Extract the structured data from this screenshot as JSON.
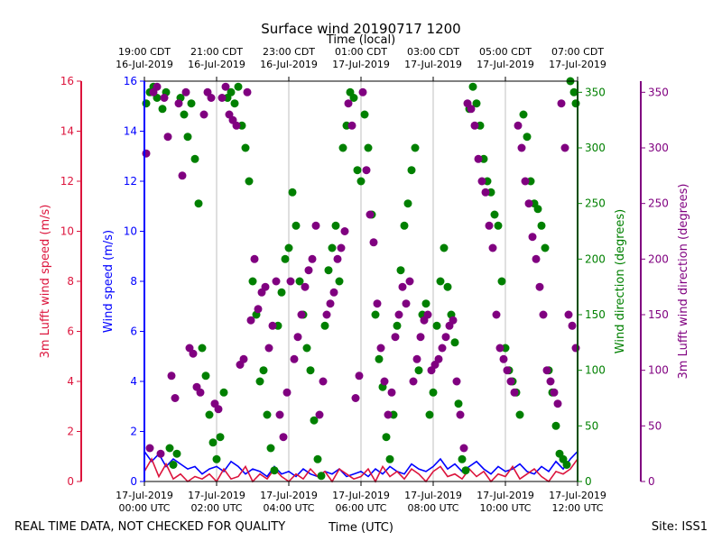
{
  "chart_data": {
    "type": "scatter",
    "title": "Surface wind 20190717 1200",
    "top_axis_label": "Time (local)",
    "top_ticks": [
      [
        "19:00 CDT",
        "16-Jul-2019"
      ],
      [
        "21:00 CDT",
        "16-Jul-2019"
      ],
      [
        "23:00 CDT",
        "16-Jul-2019"
      ],
      [
        "01:00 CDT",
        "17-Jul-2019"
      ],
      [
        "03:00 CDT",
        "17-Jul-2019"
      ],
      [
        "05:00 CDT",
        "17-Jul-2019"
      ],
      [
        "07:00 CDT",
        "17-Jul-2019"
      ]
    ],
    "bottom_ticks": [
      [
        "17-Jul-2019",
        "00:00 UTC"
      ],
      [
        "17-Jul-2019",
        "02:00 UTC"
      ],
      [
        "17-Jul-2019",
        "04:00 UTC"
      ],
      [
        "17-Jul-2019",
        "06:00 UTC"
      ],
      [
        "17-Jul-2019",
        "08:00 UTC"
      ],
      [
        "17-Jul-2019",
        "10:00 UTC"
      ],
      [
        "17-Jul-2019",
        "12:00 UTC"
      ]
    ],
    "xlabel": "Time (UTC)",
    "xlim_hours": [
      0,
      12
    ],
    "left_outer_axis": {
      "label": "3m Lufft wind speed (m/s)",
      "ticks": [
        0,
        2,
        4,
        6,
        8,
        10,
        12,
        14,
        16
      ],
      "ylim": [
        0,
        16
      ],
      "color": "#dc143c"
    },
    "left_inner_axis": {
      "label": "Wind speed (m/s)",
      "ticks": [
        0,
        2,
        4,
        6,
        8,
        10,
        12,
        14,
        16
      ],
      "ylim": [
        0,
        16
      ],
      "color": "#0000ff"
    },
    "right_inner_axis": {
      "label": "Wind direction (degrees)",
      "ticks": [
        0,
        50,
        100,
        150,
        200,
        250,
        300,
        350
      ],
      "ylim": [
        0,
        360
      ],
      "color": "#008000"
    },
    "right_outer_axis": {
      "label": "3m Lufft wind direction (degrees)",
      "ticks": [
        0,
        50,
        100,
        150,
        200,
        250,
        300,
        350
      ],
      "ylim": [
        0,
        360
      ],
      "color": "#800080"
    },
    "series": [
      {
        "name": "Wind speed",
        "kind": "line",
        "color": "#0000ff",
        "x": [
          0,
          0.2,
          0.4,
          0.6,
          0.8,
          1.0,
          1.2,
          1.4,
          1.6,
          1.8,
          2.0,
          2.2,
          2.4,
          2.6,
          2.8,
          3.0,
          3.2,
          3.4,
          3.6,
          3.8,
          4.0,
          4.2,
          4.4,
          4.6,
          4.8,
          5.0,
          5.2,
          5.4,
          5.6,
          5.8,
          6.0,
          6.2,
          6.4,
          6.6,
          6.8,
          7.0,
          7.2,
          7.4,
          7.6,
          7.8,
          8.0,
          8.2,
          8.4,
          8.6,
          8.8,
          9.0,
          9.2,
          9.4,
          9.6,
          9.8,
          10.0,
          10.2,
          10.4,
          10.6,
          10.8,
          11.0,
          11.2,
          11.4,
          11.6,
          11.8,
          12.0
        ],
        "values": [
          1.2,
          0.8,
          1.1,
          0.6,
          0.9,
          0.7,
          0.5,
          0.6,
          0.3,
          0.5,
          0.6,
          0.4,
          0.8,
          0.6,
          0.3,
          0.5,
          0.4,
          0.2,
          0.6,
          0.3,
          0.4,
          0.2,
          0.5,
          0.3,
          0.2,
          0.4,
          0.3,
          0.5,
          0.2,
          0.3,
          0.4,
          0.2,
          0.5,
          0.3,
          0.6,
          0.4,
          0.3,
          0.7,
          0.5,
          0.4,
          0.6,
          0.9,
          0.5,
          0.7,
          0.4,
          0.6,
          0.8,
          0.5,
          0.3,
          0.6,
          0.4,
          0.5,
          0.7,
          0.4,
          0.3,
          0.6,
          0.4,
          0.8,
          0.5,
          0.9,
          1.2
        ]
      },
      {
        "name": "3m Lufft wind speed",
        "kind": "line",
        "color": "#dc143c",
        "x": [
          0,
          0.2,
          0.4,
          0.6,
          0.8,
          1.0,
          1.2,
          1.4,
          1.6,
          1.8,
          2.0,
          2.2,
          2.4,
          2.6,
          2.8,
          3.0,
          3.2,
          3.4,
          3.6,
          3.8,
          4.0,
          4.2,
          4.4,
          4.6,
          4.8,
          5.0,
          5.2,
          5.4,
          5.6,
          5.8,
          6.0,
          6.2,
          6.4,
          6.6,
          6.8,
          7.0,
          7.2,
          7.4,
          7.6,
          7.8,
          8.0,
          8.2,
          8.4,
          8.6,
          8.8,
          9.0,
          9.2,
          9.4,
          9.6,
          9.8,
          10.0,
          10.2,
          10.4,
          10.6,
          10.8,
          11.0,
          11.2,
          11.4,
          11.6,
          11.8,
          12.0
        ],
        "values": [
          0.4,
          0.9,
          0.2,
          0.7,
          0.1,
          0.3,
          0.0,
          0.2,
          0.1,
          0.3,
          0.0,
          0.5,
          0.1,
          0.2,
          0.6,
          0.0,
          0.3,
          0.1,
          0.5,
          0.2,
          0.0,
          0.3,
          0.1,
          0.5,
          0.2,
          0.4,
          0.0,
          0.5,
          0.3,
          0.1,
          0.2,
          0.5,
          0.0,
          0.6,
          0.2,
          0.4,
          0.1,
          0.5,
          0.3,
          0.0,
          0.4,
          0.6,
          0.2,
          0.3,
          0.1,
          0.5,
          0.2,
          0.4,
          0.0,
          0.3,
          0.2,
          0.6,
          0.1,
          0.3,
          0.5,
          0.2,
          0.0,
          0.4,
          0.3,
          0.5,
          0.9
        ]
      },
      {
        "name": "Wind direction",
        "kind": "scatter",
        "color": "#008000",
        "x": [
          0.05,
          0.15,
          0.25,
          0.35,
          0.5,
          0.6,
          0.7,
          0.8,
          0.9,
          1.0,
          1.1,
          1.2,
          1.3,
          1.4,
          1.5,
          1.6,
          1.7,
          1.8,
          1.9,
          2.0,
          2.1,
          2.2,
          2.3,
          2.4,
          2.5,
          2.6,
          2.7,
          2.8,
          2.9,
          3.0,
          3.1,
          3.2,
          3.3,
          3.4,
          3.5,
          3.6,
          3.7,
          3.8,
          3.9,
          4.0,
          4.1,
          4.2,
          4.3,
          4.4,
          4.5,
          4.6,
          4.7,
          4.8,
          4.9,
          5.0,
          5.1,
          5.2,
          5.3,
          5.4,
          5.5,
          5.6,
          5.7,
          5.8,
          5.9,
          6.0,
          6.1,
          6.2,
          6.3,
          6.4,
          6.5,
          6.6,
          6.7,
          6.8,
          6.9,
          7.0,
          7.1,
          7.2,
          7.3,
          7.4,
          7.5,
          7.6,
          7.7,
          7.8,
          7.9,
          8.0,
          8.1,
          8.2,
          8.3,
          8.4,
          8.5,
          8.6,
          8.7,
          8.8,
          8.9,
          9.0,
          9.1,
          9.2,
          9.3,
          9.4,
          9.5,
          9.6,
          9.7,
          9.8,
          9.9,
          10.0,
          10.1,
          10.2,
          10.3,
          10.4,
          10.5,
          10.6,
          10.7,
          10.8,
          10.9,
          11.0,
          11.1,
          11.2,
          11.3,
          11.4,
          11.5,
          11.6,
          11.7,
          11.8,
          11.9,
          11.95
        ],
        "values": [
          340,
          350,
          355,
          345,
          335,
          350,
          30,
          15,
          25,
          345,
          330,
          310,
          340,
          290,
          250,
          120,
          95,
          60,
          35,
          20,
          40,
          80,
          345,
          350,
          340,
          355,
          320,
          300,
          270,
          180,
          150,
          90,
          100,
          60,
          30,
          10,
          140,
          170,
          200,
          210,
          260,
          230,
          180,
          150,
          120,
          100,
          55,
          20,
          5,
          140,
          190,
          210,
          230,
          180,
          300,
          320,
          350,
          345,
          280,
          270,
          330,
          300,
          240,
          150,
          110,
          85,
          40,
          20,
          60,
          140,
          190,
          230,
          250,
          280,
          300,
          100,
          150,
          160,
          60,
          80,
          140,
          180,
          210,
          175,
          150,
          125,
          70,
          20,
          10,
          335,
          355,
          340,
          320,
          290,
          270,
          260,
          240,
          230,
          180,
          120,
          100,
          90,
          80,
          60,
          330,
          310,
          270,
          250,
          245,
          230,
          210,
          100,
          80,
          50,
          25,
          20,
          15,
          360,
          350,
          340
        ]
      },
      {
        "name": "3m Lufft wind direction",
        "kind": "scatter",
        "color": "#800080",
        "x": [
          0.05,
          0.15,
          0.25,
          0.35,
          0.45,
          0.55,
          0.65,
          0.75,
          0.85,
          0.95,
          1.05,
          1.15,
          1.25,
          1.35,
          1.45,
          1.55,
          1.65,
          1.75,
          1.85,
          1.95,
          2.05,
          2.15,
          2.25,
          2.35,
          2.45,
          2.55,
          2.65,
          2.75,
          2.85,
          2.95,
          3.05,
          3.15,
          3.25,
          3.35,
          3.45,
          3.55,
          3.65,
          3.75,
          3.85,
          3.95,
          4.05,
          4.15,
          4.25,
          4.35,
          4.45,
          4.55,
          4.65,
          4.75,
          4.85,
          4.95,
          5.05,
          5.15,
          5.25,
          5.35,
          5.45,
          5.55,
          5.65,
          5.75,
          5.85,
          5.95,
          6.05,
          6.15,
          6.25,
          6.35,
          6.45,
          6.55,
          6.65,
          6.75,
          6.85,
          6.95,
          7.05,
          7.15,
          7.25,
          7.35,
          7.45,
          7.55,
          7.65,
          7.75,
          7.85,
          7.95,
          8.05,
          8.15,
          8.25,
          8.35,
          8.45,
          8.55,
          8.65,
          8.75,
          8.85,
          8.95,
          9.05,
          9.15,
          9.25,
          9.35,
          9.45,
          9.55,
          9.65,
          9.75,
          9.85,
          9.95,
          10.05,
          10.15,
          10.25,
          10.35,
          10.45,
          10.55,
          10.65,
          10.75,
          10.85,
          10.95,
          11.05,
          11.15,
          11.25,
          11.35,
          11.45,
          11.55,
          11.65,
          11.75,
          11.85,
          11.95
        ],
        "values": [
          295,
          30,
          350,
          355,
          25,
          345,
          310,
          95,
          75,
          340,
          275,
          350,
          120,
          115,
          85,
          80,
          330,
          350,
          345,
          70,
          65,
          345,
          355,
          330,
          325,
          320,
          105,
          110,
          350,
          145,
          200,
          155,
          170,
          175,
          120,
          140,
          180,
          60,
          40,
          80,
          180,
          110,
          130,
          150,
          175,
          190,
          200,
          230,
          60,
          90,
          150,
          160,
          170,
          200,
          210,
          225,
          340,
          320,
          75,
          95,
          350,
          280,
          240,
          215,
          160,
          120,
          90,
          60,
          80,
          130,
          150,
          175,
          160,
          180,
          90,
          110,
          130,
          145,
          150,
          100,
          105,
          110,
          120,
          130,
          140,
          145,
          90,
          60,
          30,
          340,
          335,
          320,
          290,
          270,
          260,
          230,
          210,
          150,
          120,
          110,
          100,
          90,
          80,
          320,
          300,
          270,
          250,
          220,
          200,
          175,
          150,
          100,
          90,
          80,
          70,
          340,
          300,
          150,
          140,
          120
        ]
      }
    ],
    "footer_left": "REAL TIME DATA, NOT CHECKED FOR QUALITY",
    "footer_right": "Site: ISS1"
  }
}
